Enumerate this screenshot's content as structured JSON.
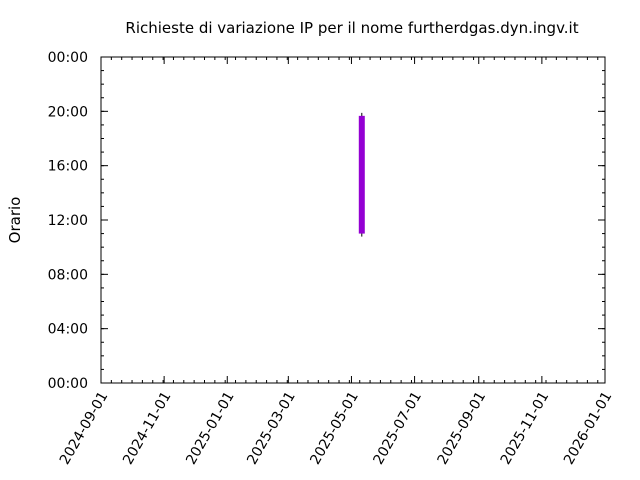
{
  "chart_data": {
    "type": "bar",
    "title": "Richieste di variazione IP per il nome furtherdgas.dyn.ingv.it",
    "xlabel": "",
    "ylabel": "Orario",
    "x_ticks": [
      "2024-09-01",
      "2024-11-01",
      "2025-01-01",
      "2025-03-01",
      "2025-05-01",
      "2025-07-01",
      "2025-09-01",
      "2025-11-01",
      "2026-01-01"
    ],
    "y_ticks": [
      "00:00",
      "04:00",
      "08:00",
      "12:00",
      "16:00",
      "20:00",
      "00:00"
    ],
    "xlim": [
      "2024-09-01",
      "2026-01-01"
    ],
    "ylim_hours": [
      0,
      24
    ],
    "grid": false,
    "series": [
      {
        "color": "#9400d3",
        "bars": [
          {
            "date": "2025-05-11",
            "start": "11:00",
            "end": "19:40"
          }
        ]
      }
    ]
  }
}
